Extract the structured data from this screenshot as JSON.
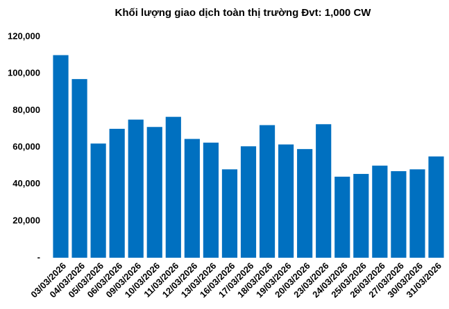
{
  "chart_data": {
    "type": "bar",
    "title": "Khối lượng giao dịch toàn thị trường Đvt: 1,000 CW",
    "categories": [
      "03/03/2026",
      "04/03/2026",
      "05/03/2026",
      "06/03/2026",
      "09/03/2026",
      "10/03/2026",
      "11/03/2026",
      "12/03/2026",
      "13/03/2026",
      "16/03/2026",
      "17/03/2026",
      "18/03/2026",
      "19/03/2026",
      "20/03/2026",
      "23/03/2026",
      "24/03/2026",
      "25/03/2026",
      "26/03/2026",
      "27/03/2026",
      "30/03/2026",
      "31/03/2026"
    ],
    "values": [
      110000,
      97000,
      62000,
      70000,
      75000,
      71000,
      76500,
      64500,
      62500,
      48000,
      60500,
      72000,
      61500,
      59000,
      72500,
      44000,
      45500,
      50000,
      47000,
      48000,
      55000
    ],
    "color": "#0070c0",
    "ylim": [
      0,
      120000
    ],
    "yticks": [
      {
        "value": 0,
        "label": "-"
      },
      {
        "value": 20000,
        "label": "20,000"
      },
      {
        "value": 40000,
        "label": "40,000"
      },
      {
        "value": 60000,
        "label": "60,000"
      },
      {
        "value": 80000,
        "label": "80,000"
      },
      {
        "value": 100000,
        "label": "100,000"
      },
      {
        "value": 120000,
        "label": "120,000"
      }
    ],
    "grid": false
  }
}
